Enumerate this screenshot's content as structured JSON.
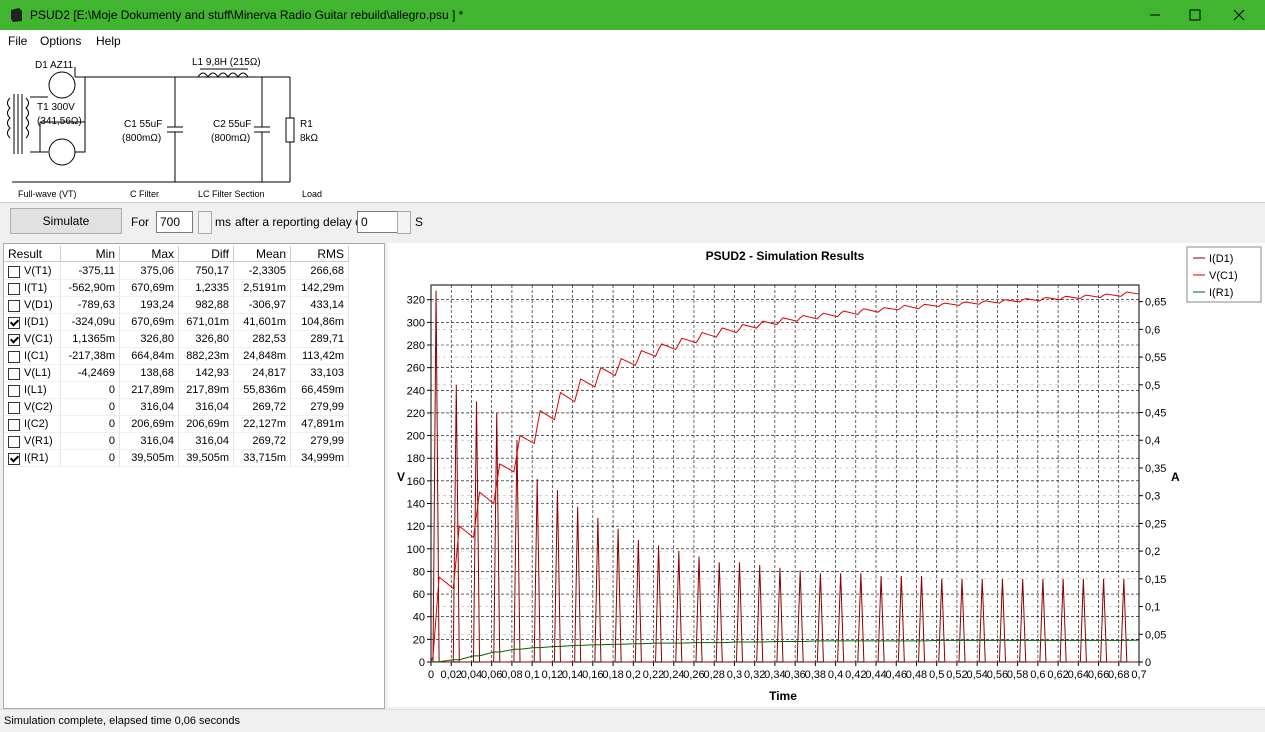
{
  "window": {
    "title": "PSUD2  [E:\\Moje Dokumenty and stuff\\Minerva Radio Guitar rebuild\\allegro.psu ] *"
  },
  "menu": [
    "File",
    "Options",
    "Help"
  ],
  "schematic": {
    "d1": "D1 AZ11",
    "t1": "T1 300V",
    "t1_r": "(341,56Ω)",
    "l1": "L1 9,8H (215Ω)",
    "c1": "C1 55uF",
    "c1_r": "(800mΩ)",
    "c2": "C2 55uF",
    "c2_r": "(800mΩ)",
    "r1": "R1",
    "r1_v": "8kΩ",
    "sections": [
      "Full-wave (VT)",
      "C Filter",
      "LC Filter Section",
      "Load"
    ]
  },
  "controls": {
    "button": "Simulate",
    "for": "For",
    "duration": "700",
    "ms": "ms",
    "delay_label": "after a reporting delay of",
    "delay": "0",
    "s": "S"
  },
  "table": {
    "headers": [
      "Result",
      "Min",
      "Max",
      "Diff",
      "Mean",
      "RMS"
    ],
    "rows": [
      {
        "checked": false,
        "cells": [
          "V(T1)",
          "-375,11",
          "375,06",
          "750,17",
          "-2,3305",
          "266,68"
        ]
      },
      {
        "checked": false,
        "cells": [
          "I(T1)",
          "-562,90m",
          "670,69m",
          "1,2335",
          "2,5191m",
          "142,29m"
        ]
      },
      {
        "checked": false,
        "cells": [
          "V(D1)",
          "-789,63",
          "193,24",
          "982,88",
          "-306,97",
          "433,14"
        ]
      },
      {
        "checked": true,
        "cells": [
          "I(D1)",
          "-324,09u",
          "670,69m",
          "671,01m",
          "41,601m",
          "104,86m"
        ]
      },
      {
        "checked": true,
        "cells": [
          "V(C1)",
          "1,1365m",
          "326,80",
          "326,80",
          "282,53",
          "289,71"
        ]
      },
      {
        "checked": false,
        "cells": [
          "I(C1)",
          "-217,38m",
          "664,84m",
          "882,23m",
          "24,848m",
          "113,42m"
        ]
      },
      {
        "checked": false,
        "cells": [
          "V(L1)",
          "-4,2469",
          "138,68",
          "142,93",
          "24,817",
          "33,103"
        ]
      },
      {
        "checked": false,
        "cells": [
          "I(L1)",
          "0",
          "217,89m",
          "217,89m",
          "55,836m",
          "66,459m"
        ]
      },
      {
        "checked": false,
        "cells": [
          "V(C2)",
          "0",
          "316,04",
          "316,04",
          "269,72",
          "279,99"
        ]
      },
      {
        "checked": false,
        "cells": [
          "I(C2)",
          "0",
          "206,69m",
          "206,69m",
          "22,127m",
          "47,891m"
        ]
      },
      {
        "checked": false,
        "cells": [
          "V(R1)",
          "0",
          "316,04",
          "316,04",
          "269,72",
          "279,99"
        ]
      },
      {
        "checked": true,
        "cells": [
          "I(R1)",
          "0",
          "39,505m",
          "39,505m",
          "33,715m",
          "34,999m"
        ]
      }
    ]
  },
  "chart_data": {
    "type": "line",
    "title": "PSUD2 - Simulation Results",
    "x_label": "Time",
    "y_label": "V",
    "y2_label": "A",
    "grid": true,
    "legend": "outside-right",
    "x": [
      0,
      0.002,
      0.005,
      0.008,
      0.022,
      0.025,
      0.028,
      0.042,
      0.045,
      0.048,
      0.062,
      0.065,
      0.068,
      0.082,
      0.085,
      0.088,
      0.102,
      0.105,
      0.108,
      0.122,
      0.125,
      0.128,
      0.142,
      0.145,
      0.148,
      0.162,
      0.165,
      0.168,
      0.182,
      0.185,
      0.188,
      0.202,
      0.205,
      0.208,
      0.222,
      0.225,
      0.228,
      0.242,
      0.245,
      0.248,
      0.262,
      0.265,
      0.268,
      0.282,
      0.285,
      0.288,
      0.302,
      0.305,
      0.308,
      0.322,
      0.325,
      0.328,
      0.342,
      0.345,
      0.348,
      0.362,
      0.365,
      0.368,
      0.382,
      0.385,
      0.388,
      0.402,
      0.405,
      0.408,
      0.422,
      0.425,
      0.428,
      0.442,
      0.445,
      0.448,
      0.462,
      0.465,
      0.468,
      0.482,
      0.485,
      0.488,
      0.502,
      0.505,
      0.508,
      0.522,
      0.525,
      0.528,
      0.542,
      0.545,
      0.548,
      0.562,
      0.565,
      0.568,
      0.582,
      0.585,
      0.588,
      0.602,
      0.605,
      0.608,
      0.622,
      0.625,
      0.628,
      0.642,
      0.645,
      0.648,
      0.662,
      0.665,
      0.668,
      0.682,
      0.685,
      0.688,
      0.7
    ],
    "series": [
      {
        "name": "I(D1)",
        "color": "#8b0000",
        "axis": "y2",
        "values": [
          0,
          0,
          0.67,
          0,
          0,
          0.5,
          0,
          0,
          0.47,
          0,
          0,
          0.45,
          0,
          0,
          0.4,
          0,
          0,
          0.33,
          0,
          0,
          0.31,
          0,
          0,
          0.28,
          0,
          0,
          0.26,
          0,
          0,
          0.24,
          0,
          0,
          0.22,
          0,
          0,
          0.21,
          0,
          0,
          0.2,
          0,
          0,
          0.19,
          0,
          0,
          0.18,
          0,
          0,
          0.18,
          0,
          0,
          0.175,
          0,
          0,
          0.17,
          0,
          0,
          0.165,
          0,
          0,
          0.16,
          0,
          0,
          0.16,
          0,
          0,
          0.16,
          0,
          0,
          0.155,
          0,
          0,
          0.155,
          0,
          0,
          0.155,
          0,
          0,
          0.15,
          0,
          0,
          0.15,
          0,
          0,
          0.15,
          0,
          0,
          0.15,
          0,
          0,
          0.15,
          0,
          0,
          0.15,
          0,
          0,
          0.15,
          0,
          0,
          0.15,
          0,
          0,
          0.15,
          0,
          0,
          0.15,
          0,
          0
        ]
      },
      {
        "name": "V(C1)",
        "color": "#e00000",
        "values": [
          0,
          5,
          40,
          75,
          65,
          92,
          120,
          110,
          130,
          150,
          140,
          158,
          175,
          168,
          184,
          200,
          193,
          208,
          222,
          214,
          226,
          238,
          230,
          240,
          250,
          243,
          252,
          260,
          253,
          260,
          268,
          262,
          268,
          275,
          270,
          276,
          281,
          276,
          281,
          286,
          282,
          286,
          291,
          287,
          291,
          295,
          291,
          294,
          298,
          295,
          298,
          301,
          298,
          301,
          304,
          301,
          304,
          306,
          303,
          306,
          308,
          305,
          308,
          310,
          307,
          310,
          312,
          309,
          311,
          313,
          311,
          313,
          315,
          312,
          314,
          316,
          314,
          316,
          317,
          315,
          317,
          318,
          316,
          318,
          319,
          317,
          319,
          320,
          318,
          320,
          321,
          319,
          321,
          322,
          320,
          322,
          323,
          321,
          323,
          324,
          322,
          324,
          325,
          323,
          325,
          326.8,
          325
        ]
      },
      {
        "name": "I(R1)",
        "color": "#006400",
        "axis": "y2",
        "values": [
          0,
          0.0005,
          0.0005,
          0.0005,
          0.004,
          0.004,
          0.004,
          0.011,
          0.011,
          0.011,
          0.018,
          0.018,
          0.018,
          0.023,
          0.023,
          0.023,
          0.026,
          0.026,
          0.026,
          0.028,
          0.028,
          0.028,
          0.03,
          0.03,
          0.03,
          0.031,
          0.031,
          0.031,
          0.032,
          0.032,
          0.032,
          0.033,
          0.033,
          0.033,
          0.034,
          0.034,
          0.034,
          0.034,
          0.034,
          0.034,
          0.035,
          0.035,
          0.035,
          0.035,
          0.035,
          0.035,
          0.036,
          0.036,
          0.036,
          0.036,
          0.036,
          0.036,
          0.037,
          0.037,
          0.037,
          0.037,
          0.037,
          0.037,
          0.038,
          0.038,
          0.038,
          0.038,
          0.038,
          0.038,
          0.038,
          0.038,
          0.038,
          0.038,
          0.038,
          0.038,
          0.038,
          0.038,
          0.038,
          0.038,
          0.038,
          0.038,
          0.039,
          0.039,
          0.039,
          0.039,
          0.039,
          0.039,
          0.039,
          0.039,
          0.039,
          0.039,
          0.039,
          0.039,
          0.039,
          0.039,
          0.039,
          0.039,
          0.039,
          0.039,
          0.039,
          0.039,
          0.039,
          0.039,
          0.039,
          0.039,
          0.039,
          0.039,
          0.039,
          0.039,
          0.039,
          0.039,
          0.0395
        ]
      }
    ],
    "xlim": [
      0,
      0.7
    ],
    "ylim": [
      0,
      333
    ],
    "y2lim": [
      0,
      0.68
    ],
    "xticks": [
      0,
      {
        "value": 0.02,
        "label": "0,02"
      },
      {
        "value": 0.04,
        "label": "0,04"
      },
      {
        "value": 0.06,
        "label": "0,06"
      },
      {
        "value": 0.08,
        "label": "0,08"
      },
      {
        "value": 0.1,
        "label": "0,1"
      },
      {
        "value": 0.12,
        "label": "0,12"
      },
      {
        "value": 0.14,
        "label": "0,14"
      },
      {
        "value": 0.16,
        "label": "0,16"
      },
      {
        "value": 0.18,
        "label": "0,18"
      },
      {
        "value": 0.2,
        "label": "0,2"
      },
      {
        "value": 0.22,
        "label": "0,22"
      },
      {
        "value": 0.24,
        "label": "0,24"
      },
      {
        "value": 0.26,
        "label": "0,26"
      },
      {
        "value": 0.28,
        "label": "0,28"
      },
      {
        "value": 0.3,
        "label": "0,3"
      },
      {
        "value": 0.32,
        "label": "0,32"
      },
      {
        "value": 0.34,
        "label": "0,34"
      },
      {
        "value": 0.36,
        "label": "0,36"
      },
      {
        "value": 0.38,
        "label": "0,38"
      },
      {
        "value": 0.4,
        "label": "0,4"
      },
      {
        "value": 0.42,
        "label": "0,42"
      },
      {
        "value": 0.44,
        "label": "0,44"
      },
      {
        "value": 0.46,
        "label": "0,46"
      },
      {
        "value": 0.48,
        "label": "0,48"
      },
      {
        "value": 0.5,
        "label": "0,5"
      },
      {
        "value": 0.52,
        "label": "0,52"
      },
      {
        "value": 0.54,
        "label": "0,54"
      },
      {
        "value": 0.56,
        "label": "0,56"
      },
      {
        "value": 0.58,
        "label": "0,58"
      },
      {
        "value": 0.6,
        "label": "0,6"
      },
      {
        "value": 0.62,
        "label": "0,62"
      },
      {
        "value": 0.64,
        "label": "0,64"
      },
      {
        "value": 0.66,
        "label": "0,66"
      },
      {
        "value": 0.68,
        "label": "0,68"
      },
      {
        "value": 0.7,
        "label": "0,7"
      }
    ],
    "yticks": [
      0,
      20,
      40,
      60,
      80,
      100,
      120,
      140,
      160,
      180,
      200,
      220,
      240,
      260,
      280,
      300,
      320
    ],
    "y2ticks": [
      0,
      {
        "value": 0.05,
        "label": "0,05"
      },
      {
        "value": 0.1,
        "label": "0,1"
      },
      {
        "value": 0.15,
        "label": "0,15"
      },
      {
        "value": 0.2,
        "label": "0,2"
      },
      {
        "value": 0.25,
        "label": "0,25"
      },
      {
        "value": 0.3,
        "label": "0,3"
      },
      {
        "value": 0.35,
        "label": "0,35"
      },
      {
        "value": 0.4,
        "label": "0,4"
      },
      {
        "value": 0.45,
        "label": "0,45"
      },
      {
        "value": 0.5,
        "label": "0,5"
      },
      {
        "value": 0.55,
        "label": "0,55"
      },
      {
        "value": 0.6,
        "label": "0,6"
      },
      {
        "value": 0.65,
        "label": "0,65"
      }
    ]
  },
  "status": "Simulation complete, elapsed time 0,06 seconds"
}
